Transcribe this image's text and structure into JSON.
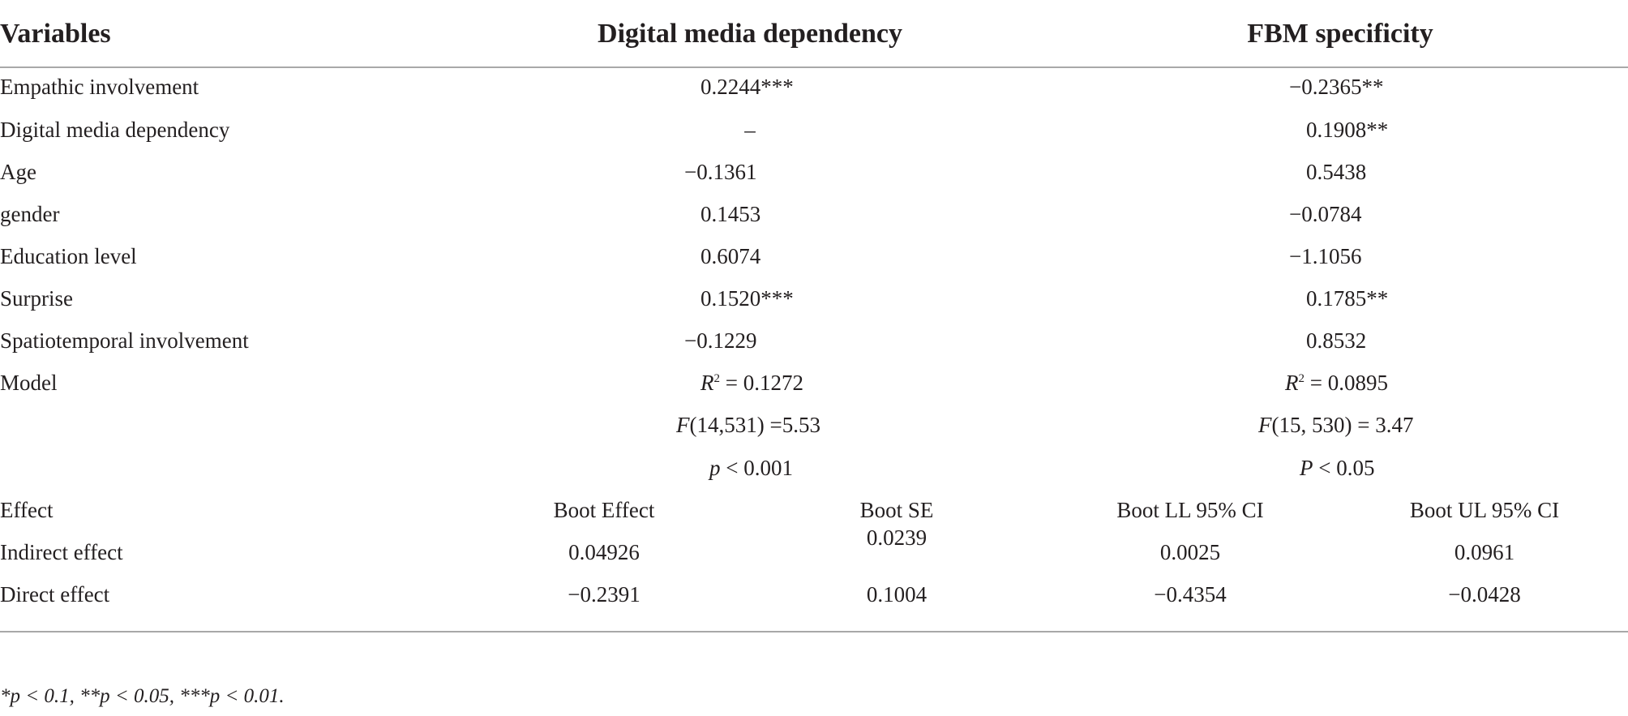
{
  "header": {
    "variables": "Variables",
    "dmd": "Digital media dependency",
    "fbm": "FBM specificity"
  },
  "rows": [
    {
      "label": "Empathic involvement",
      "dmd": "0.2244***",
      "fbm": "−0.2365**"
    },
    {
      "label": "Digital media dependency",
      "dmd": "–",
      "fbm": "0.1908**"
    },
    {
      "label": "Age",
      "dmd": "−0.1361",
      "fbm": "0.5438"
    },
    {
      "label": "gender",
      "dmd": "0.1453",
      "fbm": "−0.0784"
    },
    {
      "label": "Education level",
      "dmd": "0.6074",
      "fbm": "−1.1056"
    },
    {
      "label": "Surprise",
      "dmd": "0.1520***",
      "fbm": "0.1785**"
    },
    {
      "label": "Spatiotemporal involvement",
      "dmd": "−0.1229",
      "fbm": "0.8532"
    }
  ],
  "model": {
    "label": "Model",
    "dmd": {
      "r2_sym": "R",
      "r2_sup": "2",
      "r2_val": " = 0.1272",
      "f_sym": "F",
      "f_val": "(14,531) =5.53",
      "p_sym": "p",
      "p_val": " < 0.001"
    },
    "fbm": {
      "r2_sym": "R",
      "r2_sup": "2",
      "r2_val": " = 0.0895",
      "f_sym": "F",
      "f_val": "(15, 530) = 3.47",
      "p_sym": "P",
      "p_val": " < 0.05"
    }
  },
  "effects": {
    "label": "Effect",
    "columns": [
      "Boot Effect",
      "Boot SE",
      "Boot LL 95% CI",
      "Boot UL 95% CI"
    ],
    "indirect": {
      "label": "Indirect effect",
      "boot_effect": "0.04926",
      "boot_se": "0.0239",
      "ll": "0.0025",
      "ul": "0.0961"
    },
    "direct": {
      "label": "Direct effect",
      "boot_effect": "−0.2391",
      "boot_se": "0.1004",
      "ll": "−0.4354",
      "ul": "−0.0428"
    }
  },
  "footnote": "*p < 0.1, **p < 0.05, ***p < 0.01."
}
